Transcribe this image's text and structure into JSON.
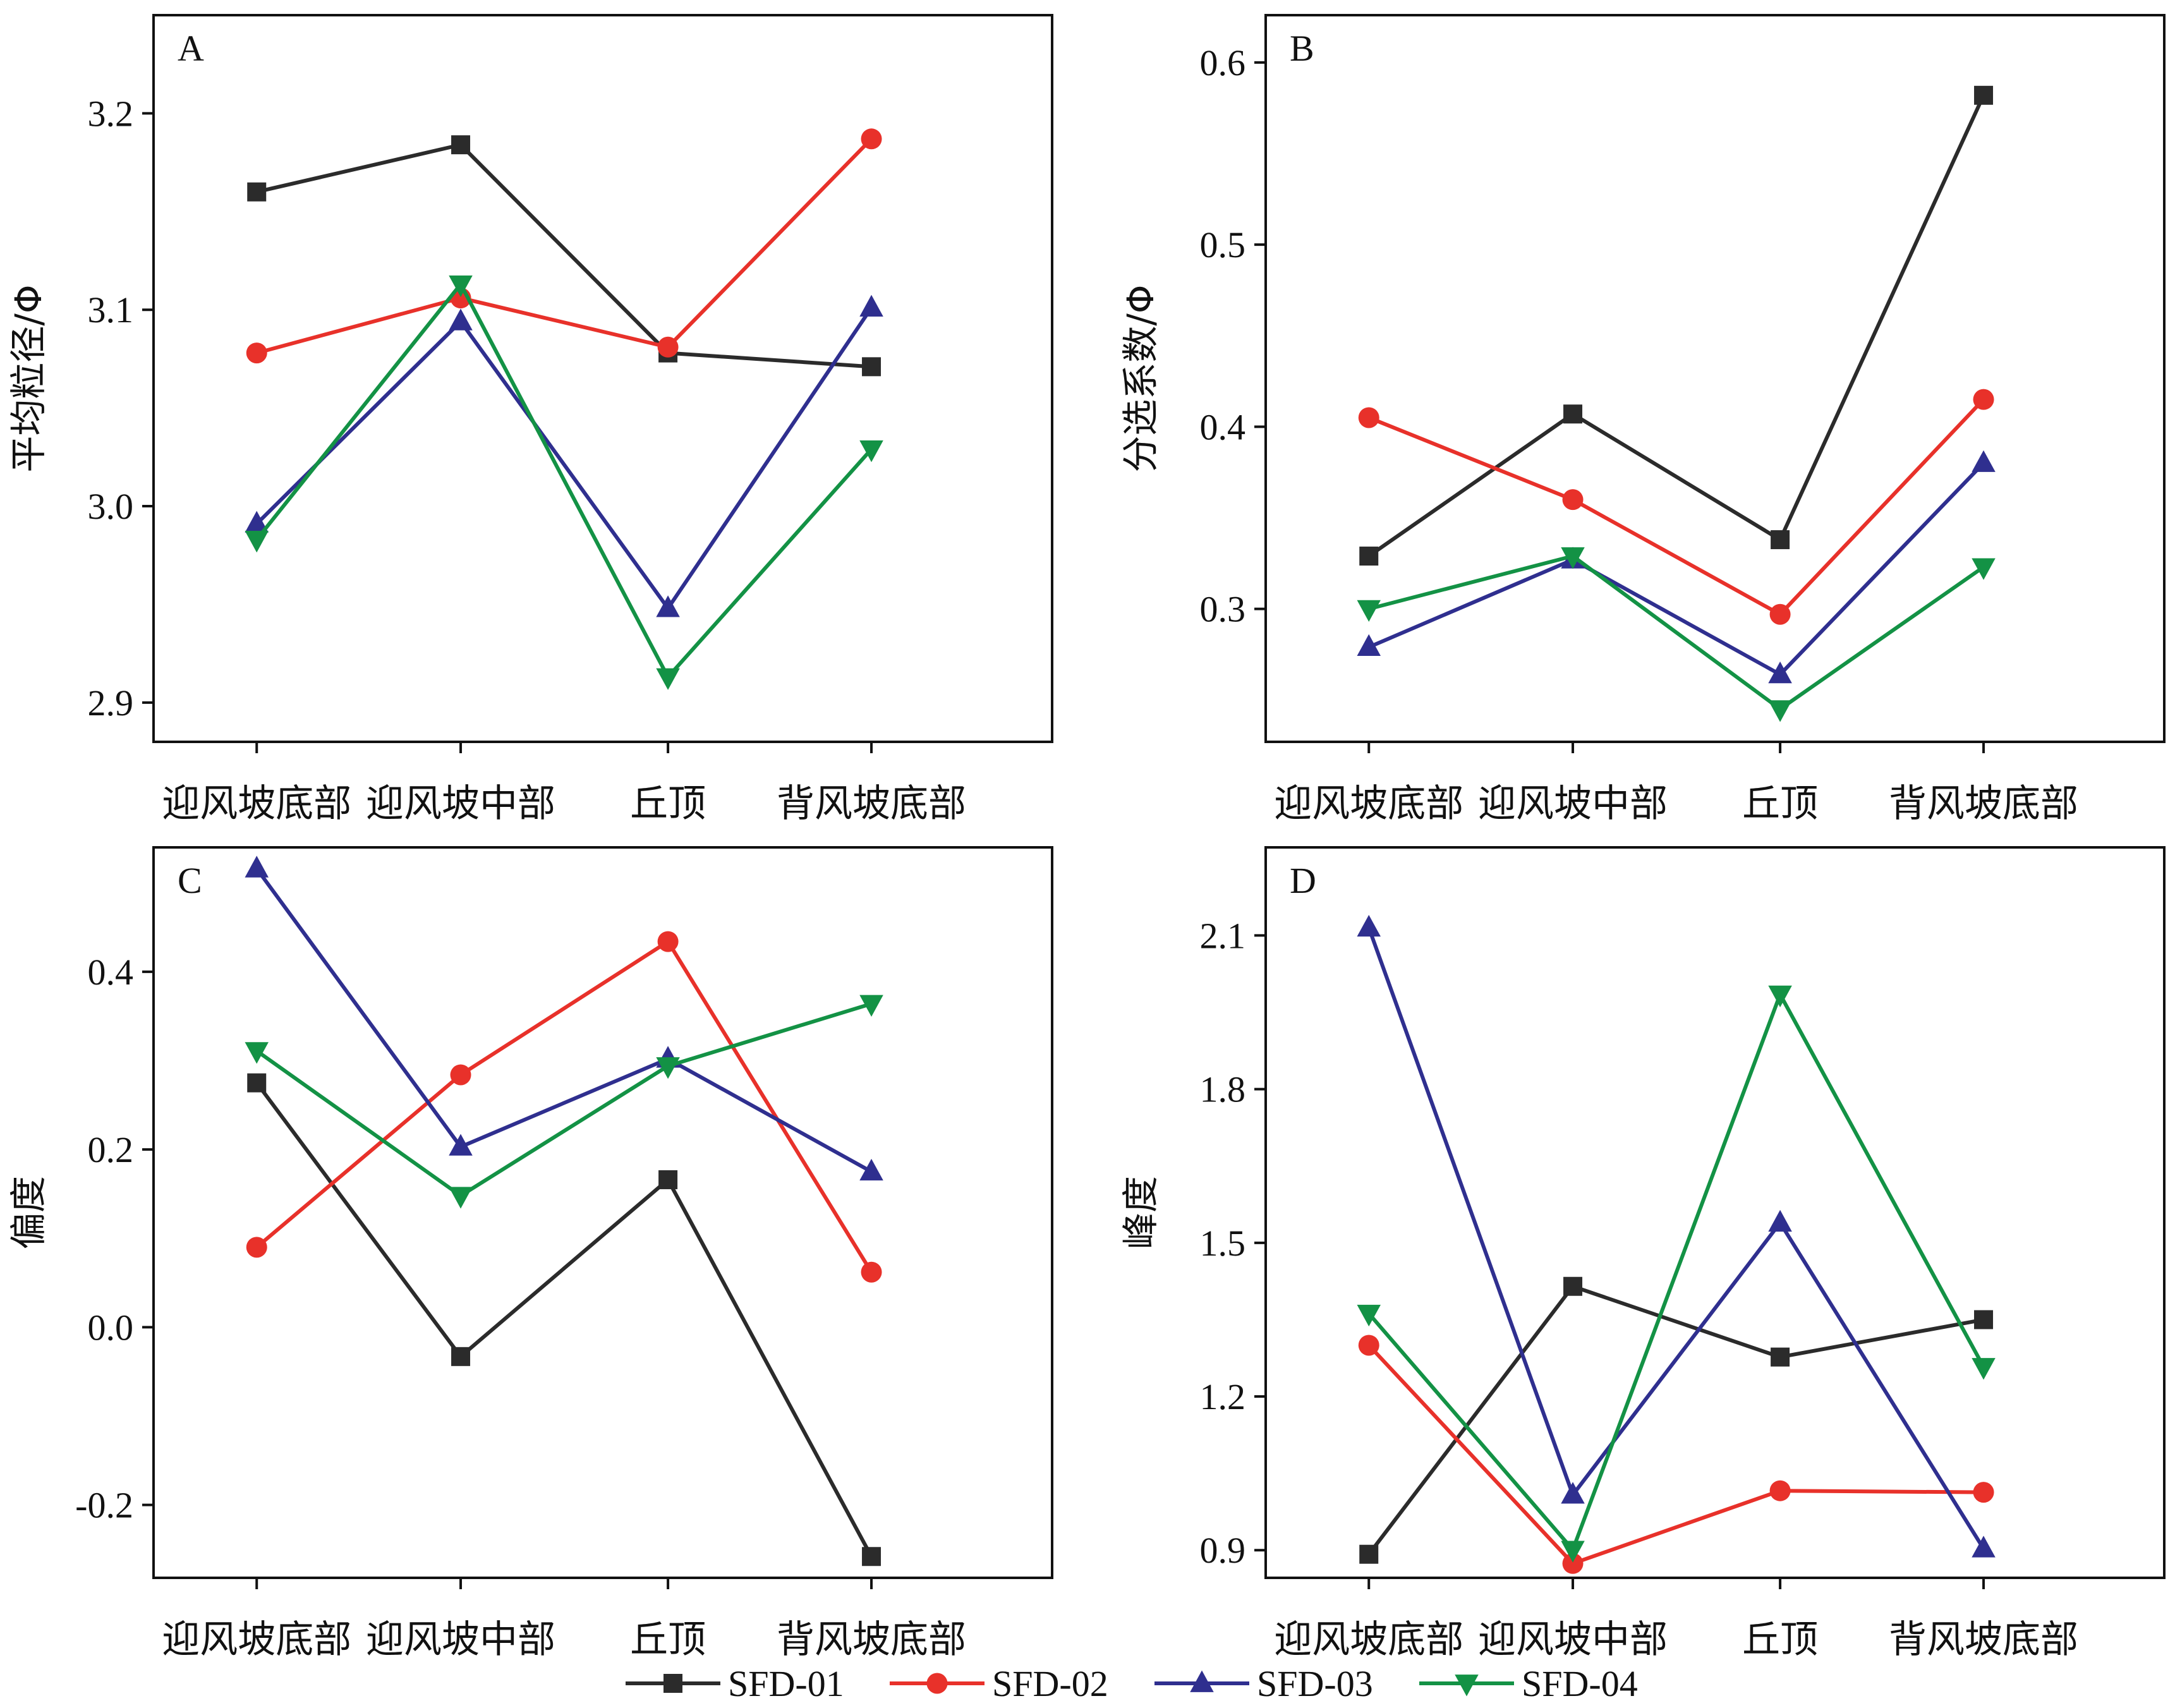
{
  "colors": {
    "SFD-01": "#2b2b2b",
    "SFD-02": "#e8312a",
    "SFD-03": "#2f2f8f",
    "SFD-04": "#139245",
    "axis": "#111111"
  },
  "legend": {
    "items": [
      {
        "name": "SFD-01",
        "marker": "square",
        "color": "#2b2b2b"
      },
      {
        "name": "SFD-02",
        "marker": "circle",
        "color": "#e8312a"
      },
      {
        "name": "SFD-03",
        "marker": "triangle-up",
        "color": "#2f2f8f"
      },
      {
        "name": "SFD-04",
        "marker": "triangle-down",
        "color": "#139245"
      }
    ],
    "placement": "bottom-center"
  },
  "chart_data": [
    {
      "panel": "A",
      "type": "line",
      "ylabel": "平均粒径/Φ",
      "ylim": [
        2.88,
        3.25
      ],
      "yticks": [
        2.9,
        3.0,
        3.1,
        3.2
      ],
      "ytick_labels": [
        "2.9",
        "3.0",
        "3.1",
        "3.2"
      ],
      "categories": [
        "迎风坡底部",
        "迎风坡中部",
        "丘顶",
        "背风坡底部"
      ],
      "grid": false,
      "series": [
        {
          "name": "SFD-01",
          "values": [
            3.16,
            3.184,
            3.078,
            3.071
          ]
        },
        {
          "name": "SFD-02",
          "values": [
            3.078,
            3.106,
            3.081,
            3.187
          ]
        },
        {
          "name": "SFD-03",
          "values": [
            2.991,
            3.094,
            2.948,
            3.101
          ]
        },
        {
          "name": "SFD-04",
          "values": [
            2.983,
            3.113,
            2.913,
            3.029
          ]
        }
      ]
    },
    {
      "panel": "B",
      "type": "line",
      "ylabel": "分选系数/Φ",
      "ylim": [
        0.227,
        0.626
      ],
      "yticks": [
        0.3,
        0.4,
        0.5,
        0.6
      ],
      "ytick_labels": [
        "0.3",
        "0.4",
        "0.5",
        "0.6"
      ],
      "categories": [
        "迎风坡底部",
        "迎风坡中部",
        "丘顶",
        "背风坡底部"
      ],
      "grid": false,
      "series": [
        {
          "name": "SFD-01",
          "values": [
            0.329,
            0.407,
            0.338,
            0.582
          ]
        },
        {
          "name": "SFD-02",
          "values": [
            0.405,
            0.36,
            0.297,
            0.415
          ]
        },
        {
          "name": "SFD-03",
          "values": [
            0.279,
            0.327,
            0.264,
            0.38
          ]
        },
        {
          "name": "SFD-04",
          "values": [
            0.3,
            0.329,
            0.245,
            0.323
          ]
        }
      ]
    },
    {
      "panel": "C",
      "type": "line",
      "ylabel": "偏度",
      "ylim": [
        -0.282,
        0.54
      ],
      "yticks": [
        -0.2,
        0.0,
        0.2,
        0.4
      ],
      "ytick_labels": [
        "-0.2",
        "0.0",
        "0.2",
        "0.4"
      ],
      "categories": [
        "迎风坡底部",
        "迎风坡中部",
        "丘顶",
        "背风坡底部"
      ],
      "grid": false,
      "series": [
        {
          "name": "SFD-01",
          "values": [
            0.275,
            -0.033,
            0.166,
            -0.258
          ]
        },
        {
          "name": "SFD-02",
          "values": [
            0.09,
            0.284,
            0.434,
            0.062
          ]
        },
        {
          "name": "SFD-03",
          "values": [
            0.516,
            0.203,
            0.302,
            0.175
          ]
        },
        {
          "name": "SFD-04",
          "values": [
            0.311,
            0.148,
            0.294,
            0.364
          ]
        }
      ]
    },
    {
      "panel": "D",
      "type": "line",
      "ylabel": "峰度",
      "ylim": [
        0.846,
        2.272
      ],
      "yticks": [
        0.9,
        1.2,
        1.5,
        1.8,
        2.1
      ],
      "ytick_labels": [
        "0.9",
        "1.2",
        "1.5",
        "1.8",
        "2.1"
      ],
      "categories": [
        "迎风坡底部",
        "迎风坡中部",
        "丘顶",
        "背风坡底部"
      ],
      "grid": false,
      "series": [
        {
          "name": "SFD-01",
          "values": [
            0.892,
            1.415,
            1.277,
            1.35
          ]
        },
        {
          "name": "SFD-02",
          "values": [
            1.3,
            0.874,
            1.016,
            1.013
          ]
        },
        {
          "name": "SFD-03",
          "values": [
            2.115,
            1.008,
            1.539,
            0.903
          ]
        },
        {
          "name": "SFD-04",
          "values": [
            1.362,
            0.901,
            1.985,
            1.258
          ]
        }
      ]
    }
  ]
}
